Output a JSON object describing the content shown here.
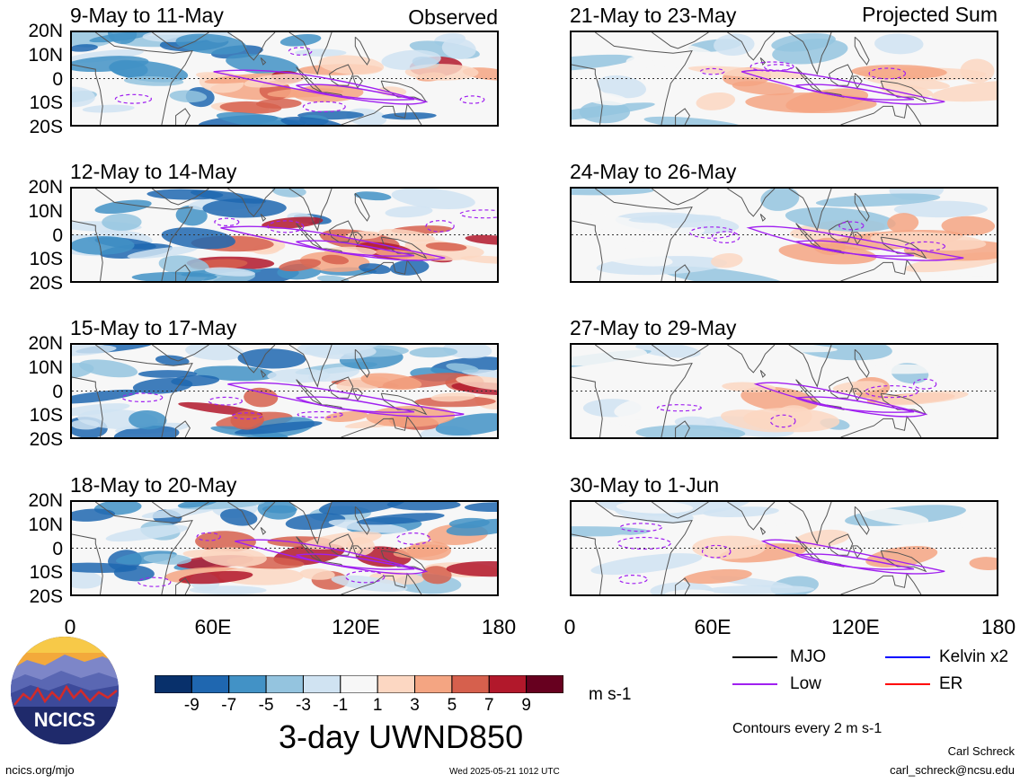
{
  "header": {
    "observed_label": "Observed",
    "projected_label": "Projected Sum"
  },
  "panels": {
    "left": [
      {
        "title": "9-May to 11-May"
      },
      {
        "title": "12-May to 14-May"
      },
      {
        "title": "15-May to 17-May"
      },
      {
        "title": "18-May to 20-May"
      }
    ],
    "right": [
      {
        "title": "21-May to 23-May"
      },
      {
        "title": "24-May to 26-May"
      },
      {
        "title": "27-May to 29-May"
      },
      {
        "title": "30-May to 1-Jun"
      }
    ]
  },
  "axes": {
    "lat_ticks": [
      "20N",
      "10N",
      "0",
      "10S",
      "20S"
    ],
    "lon_ticks": [
      "0",
      "60E",
      "120E",
      "180"
    ]
  },
  "colorbar": {
    "labels": [
      "-9",
      "-7",
      "-5",
      "-3",
      "-1",
      "1",
      "3",
      "5",
      "7",
      "9"
    ],
    "colors": [
      "#08306b",
      "#1f67b0",
      "#4292c6",
      "#94c4df",
      "#d0e3f2",
      "#f7f7f7",
      "#fcd7c2",
      "#f4a582",
      "#d6604d",
      "#b2182b",
      "#67001f"
    ],
    "units": "m s-1",
    "title": "3-day UWND850"
  },
  "legend": {
    "items": [
      {
        "label": "MJO",
        "color": "#000000"
      },
      {
        "label": "Kelvin x2",
        "color": "#0000ff"
      },
      {
        "label": "Low",
        "color": "#a020f0"
      },
      {
        "label": "ER",
        "color": "#ff0000"
      }
    ],
    "contour_note": "Contours every 2 m s-1"
  },
  "logo": {
    "text": "NCICS"
  },
  "footer": {
    "url": "ncics.org/mjo",
    "timestamp": "Wed 2025-05-21 1012 UTC",
    "author": "Carl Schreck",
    "email": "carl_schreck@ncsu.edu"
  }
}
